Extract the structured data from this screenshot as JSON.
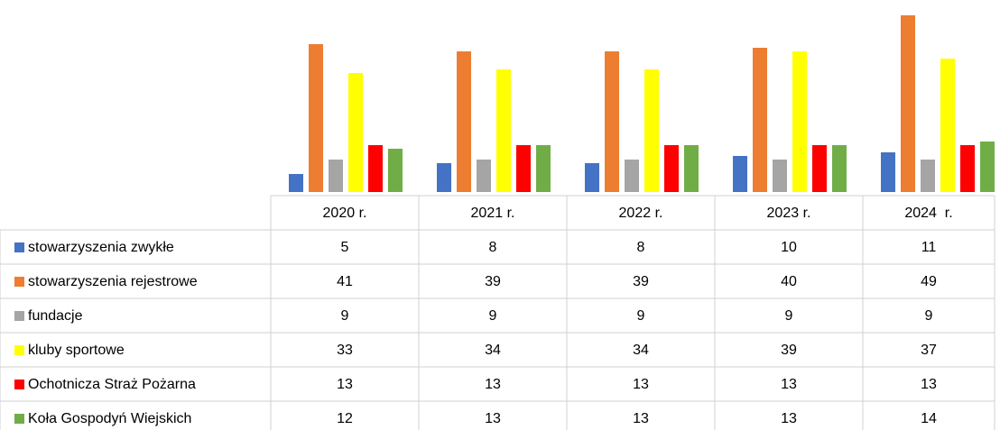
{
  "chart_data": {
    "type": "bar",
    "categories": [
      "2020 r.",
      "2021 r.",
      "2022 r.",
      "2023 r.",
      "2024  r."
    ],
    "series": [
      {
        "name": "stowarzyszenia zwykłe",
        "color": "#4472c4",
        "values": [
          5,
          8,
          8,
          10,
          11
        ]
      },
      {
        "name": "stowarzyszenia rejestrowe",
        "color": "#ed7d31",
        "values": [
          41,
          39,
          39,
          40,
          49
        ]
      },
      {
        "name": "fundacje",
        "color": "#a5a5a5",
        "values": [
          9,
          9,
          9,
          9,
          9
        ]
      },
      {
        "name": "kluby sportowe",
        "color": "#ffff00",
        "values": [
          33,
          34,
          34,
          39,
          37
        ]
      },
      {
        "name": "Ochotnicza Straż Pożarna",
        "color": "#ff0000",
        "values": [
          13,
          13,
          13,
          13,
          13
        ]
      },
      {
        "name": "Koła Gospodyń Wiejskich",
        "color": "#70ad47",
        "values": [
          12,
          13,
          13,
          13,
          14
        ]
      }
    ]
  }
}
